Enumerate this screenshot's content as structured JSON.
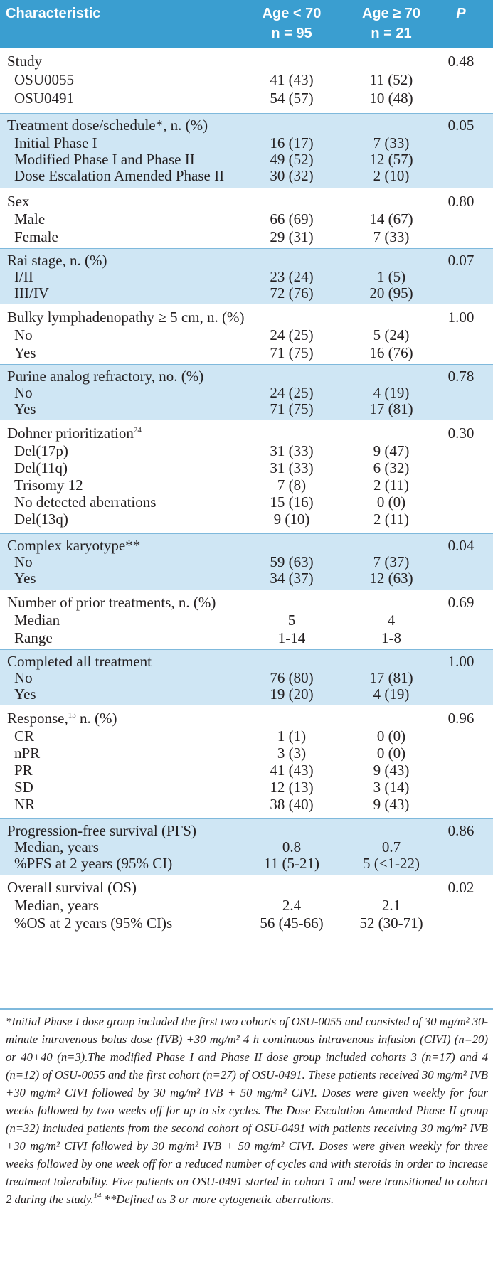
{
  "header": {
    "characteristic": "Characteristic",
    "col1_line1": "Age < 70",
    "col1_line2": "n = 95",
    "col2_line1": "Age ≥ 70",
    "col2_line2": "n = 21",
    "p": "P"
  },
  "groups": [
    {
      "label": "Study",
      "p": "0.48",
      "rows": [
        {
          "label": "OSU0055",
          "c1": "41 (43)",
          "c2": "11 (52)"
        },
        {
          "label": "OSU0491",
          "c1": "54 (57)",
          "c2": "10 (48)"
        }
      ]
    },
    {
      "label": "Treatment dose/schedule*, n. (%)",
      "p": "0.05",
      "rows": [
        {
          "label": "Initial Phase I",
          "c1": "16 (17)",
          "c2": "7 (33)"
        },
        {
          "label": "Modified Phase I and Phase II",
          "c1": "49 (52)",
          "c2": "12 (57)"
        },
        {
          "label": "Dose Escalation Amended Phase II",
          "c1": "30 (32)",
          "c2": "2 (10)"
        }
      ]
    },
    {
      "label": "Sex",
      "p": "0.80",
      "rows": [
        {
          "label": "Male",
          "c1": "66 (69)",
          "c2": "14 (67)"
        },
        {
          "label": "Female",
          "c1": "29 (31)",
          "c2": "7 (33)"
        }
      ]
    },
    {
      "label": "Rai stage, n. (%)",
      "p": "0.07",
      "rows": [
        {
          "label": "I/II",
          "c1": "23 (24)",
          "c2": "1 (5)"
        },
        {
          "label": "III/IV",
          "c1": "72 (76)",
          "c2": "20 (95)"
        }
      ]
    },
    {
      "label": "Bulky lymphadenopathy ≥ 5 cm, n. (%)",
      "p": "1.00",
      "rows": [
        {
          "label": "No",
          "c1": "24 (25)",
          "c2": "5 (24)"
        },
        {
          "label": "Yes",
          "c1": "71 (75)",
          "c2": "16 (76)"
        }
      ]
    },
    {
      "label": "Purine analog refractory, no. (%)",
      "p": "0.78",
      "rows": [
        {
          "label": "No",
          "c1": "24 (25)",
          "c2": "4 (19)"
        },
        {
          "label": "Yes",
          "c1": "71 (75)",
          "c2": "17 (81)"
        }
      ]
    },
    {
      "label": "Dohner prioritization",
      "sup": "24",
      "p": "0.30",
      "rows": [
        {
          "label": "Del(17p)",
          "c1": "31 (33)",
          "c2": "9 (47)"
        },
        {
          "label": "Del(11q)",
          "c1": "31 (33)",
          "c2": "6 (32)"
        },
        {
          "label": "Trisomy 12",
          "c1": "7 (8)",
          "c2": "2 (11)"
        },
        {
          "label": "No detected aberrations",
          "c1": "15 (16)",
          "c2": "0 (0)"
        },
        {
          "label": "Del(13q)",
          "c1": "9 (10)",
          "c2": "2 (11)"
        }
      ]
    },
    {
      "label": "Complex karyotype**",
      "p": "0.04",
      "rows": [
        {
          "label": "No",
          "c1": "59 (63)",
          "c2": "7 (37)"
        },
        {
          "label": "Yes",
          "c1": "34 (37)",
          "c2": "12 (63)"
        }
      ]
    },
    {
      "label": "Number of prior treatments, n. (%)",
      "p": "0.69",
      "rows": [
        {
          "label": "Median",
          "c1": "5",
          "c2": "4"
        },
        {
          "label": "Range",
          "c1": "1-14",
          "c2": "1-8"
        }
      ]
    },
    {
      "label": "Completed all treatment",
      "p": "1.00",
      "rows": [
        {
          "label": "No",
          "c1": "76 (80)",
          "c2": "17 (81)"
        },
        {
          "label": "Yes",
          "c1": "19 (20)",
          "c2": "4 (19)"
        }
      ]
    },
    {
      "label": "Response,",
      "sup": "13",
      "label_after": " n. (%)",
      "p": "0.96",
      "rows": [
        {
          "label": "CR",
          "c1": "1 (1)",
          "c2": "0 (0)"
        },
        {
          "label": "nPR",
          "c1": "3 (3)",
          "c2": "0 (0)"
        },
        {
          "label": "PR",
          "c1": "41 (43)",
          "c2": "9 (43)"
        },
        {
          "label": "SD",
          "c1": "12 (13)",
          "c2": "3 (14)"
        },
        {
          "label": "NR",
          "c1": "38 (40)",
          "c2": "9 (43)"
        }
      ]
    },
    {
      "label": "Progression-free survival (PFS)",
      "p": "0.86",
      "rows": [
        {
          "label": "Median, years",
          "c1": "0.8",
          "c2": "0.7"
        },
        {
          "label": "%PFS at 2 years (95% CI)",
          "c1": "11 (5-21)",
          "c2": "5 (<1-22)"
        }
      ]
    },
    {
      "label": "Overall survival (OS)",
      "p": "0.02",
      "rows": [
        {
          "label": "Median, years",
          "c1": "2.4",
          "c2": "2.1"
        },
        {
          "label": "%OS at 2 years (95% CI)s",
          "c1": "56 (45-66)",
          "c2": "52 (30-71)"
        }
      ]
    }
  ],
  "footnote": {
    "text": "*Initial Phase I dose group included the first two cohorts of OSU-0055 and consisted of 30 mg/m² 30-minute intravenous bolus dose (IVB) +30 mg/m² 4 h continuous intravenous infusion (CIVI) (n=20) or 40+40 (n=3).The modified Phase I and Phase II dose group included cohorts 3 (n=17) and 4 (n=12) of OSU-0055 and the first cohort (n=27) of OSU-0491. These patients received 30 mg/m² IVB +30 mg/m² CIVI followed by 30 mg/m² IVB + 50 mg/m² CIVI. Doses were given weekly for four weeks followed by two weeks off for up to six cycles. The Dose Escalation Amended Phase II group (n=32) included patients from the second cohort of OSU-0491 with patients receiving 30 mg/m² IVB +30 mg/m² CIVI followed by 30 mg/m² IVB + 50 mg/m² CIVI. Doses were given weekly for three weeks followed by one week off for a reduced number of cycles and with steroids in order to increase treatment tolerability. Five patients on OSU-0491 started in cohort 1 and were transitioned to cohort 2 during the study.",
    "sup": "14",
    "text_after": " **Defined as 3 or more cytogenetic aberrations."
  }
}
